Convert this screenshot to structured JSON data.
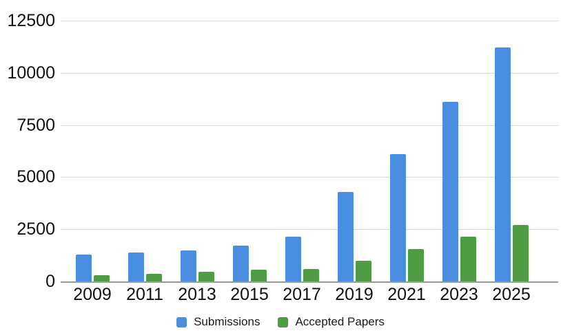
{
  "chart_data": {
    "type": "bar",
    "title": "",
    "xlabel": "",
    "ylabel": "",
    "categories": [
      "2009",
      "2011",
      "2013",
      "2015",
      "2017",
      "2019",
      "2021",
      "2023",
      "2025"
    ],
    "series": [
      {
        "name": "Submissions",
        "color": "#4a8ee2",
        "values": [
          1300,
          1400,
          1500,
          1700,
          2150,
          4300,
          6100,
          8600,
          11200
        ]
      },
      {
        "name": "Accepted Papers",
        "color": "#4f9c44",
        "values": [
          300,
          350,
          450,
          550,
          600,
          1000,
          1550,
          2150,
          2700
        ]
      }
    ],
    "ylim": [
      0,
      12500
    ],
    "yticks": [
      0,
      2500,
      5000,
      7500,
      10000,
      12500
    ],
    "grid": true,
    "legend_position": "bottom",
    "colors": {
      "axis_line": "#9b9b9b",
      "gridline": "#d9d9d9",
      "tick_label": "#111111",
      "legend_text": "#1a1a1a",
      "background": "#ffffff"
    }
  }
}
